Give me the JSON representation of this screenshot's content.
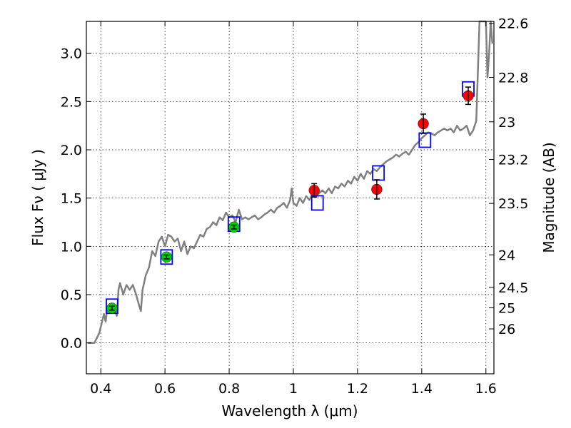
{
  "chart_data": {
    "type": "scatter",
    "xlabel": "Wavelength  λ (μm)",
    "ylabel": "Flux  Fν  ( μJy )",
    "y2label": "Magnitude (AB)",
    "xlim": [
      0.355,
      1.625
    ],
    "ylim": [
      -0.32,
      3.33
    ],
    "x_ticks": [
      0.4,
      0.6,
      0.8,
      1.0,
      1.2,
      1.4,
      1.6
    ],
    "x_tick_labels": [
      "0.4",
      "0.6",
      "0.8",
      "1",
      "1.2",
      "1.4",
      "1.6"
    ],
    "y_ticks": [
      0.0,
      0.5,
      1.0,
      1.5,
      2.0,
      2.5,
      3.0
    ],
    "y_tick_labels": [
      "0.0",
      "0.5",
      "1.0",
      "1.5",
      "2.0",
      "2.5",
      "3.0"
    ],
    "y2_ticks": [
      {
        "label": "22.6",
        "flux": 3.31
      },
      {
        "label": "22.8",
        "flux": 2.75
      },
      {
        "label": "23",
        "flux": 2.29
      },
      {
        "label": "23.2",
        "flux": 1.9
      },
      {
        "label": "23.5",
        "flux": 1.445
      },
      {
        "label": "24",
        "flux": 0.912
      },
      {
        "label": "24.5",
        "flux": 0.575
      },
      {
        "label": "25",
        "flux": 0.363
      },
      {
        "label": "26",
        "flux": 0.145
      }
    ],
    "grid": true,
    "series": [
      {
        "type": "line",
        "color": "#808080",
        "points": [
          [
            0.36,
            0.0
          ],
          [
            0.38,
            0.0
          ],
          [
            0.395,
            0.1
          ],
          [
            0.41,
            0.3
          ],
          [
            0.415,
            0.22
          ],
          [
            0.42,
            0.35
          ],
          [
            0.43,
            0.33
          ],
          [
            0.44,
            0.38
          ],
          [
            0.45,
            0.28
          ],
          [
            0.455,
            0.55
          ],
          [
            0.46,
            0.62
          ],
          [
            0.47,
            0.5
          ],
          [
            0.48,
            0.6
          ],
          [
            0.49,
            0.55
          ],
          [
            0.5,
            0.6
          ],
          [
            0.51,
            0.5
          ],
          [
            0.52,
            0.38
          ],
          [
            0.525,
            0.33
          ],
          [
            0.53,
            0.55
          ],
          [
            0.54,
            0.7
          ],
          [
            0.55,
            0.78
          ],
          [
            0.56,
            0.95
          ],
          [
            0.57,
            0.9
          ],
          [
            0.58,
            1.05
          ],
          [
            0.59,
            1.1
          ],
          [
            0.6,
            1.0
          ],
          [
            0.61,
            1.12
          ],
          [
            0.62,
            1.1
          ],
          [
            0.63,
            1.05
          ],
          [
            0.64,
            1.08
          ],
          [
            0.65,
            0.95
          ],
          [
            0.66,
            1.05
          ],
          [
            0.67,
            0.92
          ],
          [
            0.68,
            1.0
          ],
          [
            0.69,
            0.98
          ],
          [
            0.7,
            1.05
          ],
          [
            0.71,
            1.12
          ],
          [
            0.72,
            1.1
          ],
          [
            0.73,
            1.18
          ],
          [
            0.74,
            1.2
          ],
          [
            0.75,
            1.25
          ],
          [
            0.76,
            1.22
          ],
          [
            0.77,
            1.3
          ],
          [
            0.78,
            1.27
          ],
          [
            0.79,
            1.35
          ],
          [
            0.8,
            1.3
          ],
          [
            0.81,
            1.32
          ],
          [
            0.82,
            1.25
          ],
          [
            0.83,
            1.38
          ],
          [
            0.84,
            1.28
          ],
          [
            0.85,
            1.3
          ],
          [
            0.86,
            1.28
          ],
          [
            0.87,
            1.3
          ],
          [
            0.88,
            1.32
          ],
          [
            0.89,
            1.28
          ],
          [
            0.9,
            1.3
          ],
          [
            0.91,
            1.33
          ],
          [
            0.92,
            1.35
          ],
          [
            0.93,
            1.38
          ],
          [
            0.94,
            1.35
          ],
          [
            0.95,
            1.4
          ],
          [
            0.96,
            1.42
          ],
          [
            0.97,
            1.45
          ],
          [
            0.98,
            1.4
          ],
          [
            0.99,
            1.48
          ],
          [
            0.995,
            1.6
          ],
          [
            1.0,
            1.45
          ],
          [
            1.01,
            1.42
          ],
          [
            1.02,
            1.5
          ],
          [
            1.03,
            1.45
          ],
          [
            1.04,
            1.52
          ],
          [
            1.05,
            1.48
          ],
          [
            1.06,
            1.55
          ],
          [
            1.07,
            1.52
          ],
          [
            1.08,
            1.55
          ],
          [
            1.09,
            1.58
          ],
          [
            1.1,
            1.55
          ],
          [
            1.11,
            1.6
          ],
          [
            1.12,
            1.55
          ],
          [
            1.13,
            1.62
          ],
          [
            1.14,
            1.6
          ],
          [
            1.15,
            1.65
          ],
          [
            1.16,
            1.62
          ],
          [
            1.17,
            1.68
          ],
          [
            1.18,
            1.65
          ],
          [
            1.19,
            1.72
          ],
          [
            1.2,
            1.68
          ],
          [
            1.21,
            1.75
          ],
          [
            1.22,
            1.7
          ],
          [
            1.23,
            1.78
          ],
          [
            1.24,
            1.75
          ],
          [
            1.25,
            1.8
          ],
          [
            1.26,
            1.78
          ],
          [
            1.27,
            1.82
          ],
          [
            1.28,
            1.85
          ],
          [
            1.29,
            1.88
          ],
          [
            1.3,
            1.9
          ],
          [
            1.31,
            1.92
          ],
          [
            1.32,
            1.95
          ],
          [
            1.33,
            1.93
          ],
          [
            1.34,
            1.96
          ],
          [
            1.35,
            1.98
          ],
          [
            1.36,
            1.95
          ],
          [
            1.37,
            2.0
          ],
          [
            1.38,
            2.05
          ],
          [
            1.39,
            2.08
          ],
          [
            1.4,
            2.12
          ],
          [
            1.41,
            2.15
          ],
          [
            1.42,
            2.18
          ],
          [
            1.43,
            2.17
          ],
          [
            1.44,
            2.15
          ],
          [
            1.45,
            2.18
          ],
          [
            1.46,
            2.2
          ],
          [
            1.47,
            2.22
          ],
          [
            1.48,
            2.2
          ],
          [
            1.49,
            2.22
          ],
          [
            1.5,
            2.18
          ],
          [
            1.51,
            2.25
          ],
          [
            1.52,
            2.2
          ],
          [
            1.53,
            2.22
          ],
          [
            1.54,
            2.25
          ],
          [
            1.55,
            2.15
          ],
          [
            1.56,
            2.2
          ],
          [
            1.57,
            2.3
          ],
          [
            1.575,
            2.8
          ],
          [
            1.58,
            3.33
          ],
          [
            1.6,
            3.33
          ],
          [
            1.605,
            2.75
          ],
          [
            1.61,
            3.0
          ],
          [
            1.615,
            3.33
          ],
          [
            1.62,
            3.1
          ]
        ]
      },
      {
        "type": "open-square",
        "color": "#0000ff",
        "points": [
          [
            0.435,
            0.38
          ],
          [
            0.605,
            0.89
          ],
          [
            0.815,
            1.23
          ],
          [
            1.075,
            1.45
          ],
          [
            1.265,
            1.76
          ],
          [
            1.41,
            2.1
          ],
          [
            1.545,
            2.63
          ]
        ]
      },
      {
        "type": "circle-errorbar",
        "color": "#00cc00",
        "points": [
          [
            0.435,
            0.36,
            0.02
          ],
          [
            0.605,
            0.89,
            0.02
          ],
          [
            0.815,
            1.2,
            0.02
          ]
        ]
      },
      {
        "type": "circle-errorbar",
        "color": "#ff0000",
        "points": [
          [
            1.065,
            1.58,
            0.07
          ],
          [
            1.26,
            1.59,
            0.1
          ],
          [
            1.405,
            2.27,
            0.1
          ],
          [
            1.545,
            2.56,
            0.09
          ]
        ]
      }
    ]
  }
}
